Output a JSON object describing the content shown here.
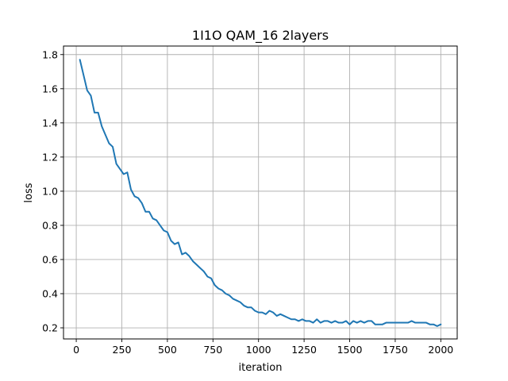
{
  "colors": {
    "line": "#1f77b4",
    "grid": "#b0b0b0",
    "axes": "#000000",
    "background": "#ffffff"
  },
  "chart_data": {
    "type": "line",
    "title": "1I1O QAM_16 2layers",
    "xlabel": "iteration",
    "ylabel": "loss",
    "grid": true,
    "xlim": [
      -70,
      2090
    ],
    "ylim": [
      0.135,
      1.85
    ],
    "xticks": [
      0,
      250,
      500,
      750,
      1000,
      1250,
      1500,
      1750,
      2000
    ],
    "xtick_labels": [
      "0",
      "250",
      "500",
      "750",
      "1000",
      "1250",
      "1500",
      "1750",
      "2000"
    ],
    "yticks": [
      0.2,
      0.4,
      0.6,
      0.8,
      1.0,
      1.2,
      1.4,
      1.6,
      1.8
    ],
    "ytick_labels": [
      "0.2",
      "0.4",
      "0.6",
      "0.8",
      "1.0",
      "1.2",
      "1.4",
      "1.6",
      "1.8"
    ],
    "series": [
      {
        "name": "loss",
        "x": [
          20,
          40,
          60,
          80,
          100,
          120,
          140,
          160,
          180,
          200,
          220,
          240,
          260,
          280,
          300,
          320,
          340,
          360,
          380,
          400,
          420,
          440,
          460,
          480,
          500,
          520,
          540,
          560,
          580,
          600,
          620,
          640,
          660,
          680,
          700,
          720,
          740,
          760,
          780,
          800,
          820,
          840,
          860,
          880,
          900,
          920,
          940,
          960,
          980,
          1000,
          1020,
          1040,
          1060,
          1080,
          1100,
          1120,
          1140,
          1160,
          1180,
          1200,
          1220,
          1240,
          1260,
          1280,
          1300,
          1320,
          1340,
          1360,
          1380,
          1400,
          1420,
          1440,
          1460,
          1480,
          1500,
          1520,
          1540,
          1560,
          1580,
          1600,
          1620,
          1640,
          1660,
          1680,
          1700,
          1720,
          1740,
          1760,
          1780,
          1800,
          1820,
          1840,
          1860,
          1880,
          1900,
          1920,
          1940,
          1960,
          1980,
          2000
        ],
        "y": [
          1.77,
          1.68,
          1.59,
          1.56,
          1.46,
          1.46,
          1.38,
          1.33,
          1.28,
          1.26,
          1.16,
          1.13,
          1.1,
          1.11,
          1.01,
          0.97,
          0.96,
          0.93,
          0.88,
          0.88,
          0.84,
          0.83,
          0.8,
          0.77,
          0.76,
          0.71,
          0.69,
          0.7,
          0.63,
          0.64,
          0.62,
          0.59,
          0.57,
          0.55,
          0.53,
          0.5,
          0.49,
          0.45,
          0.43,
          0.42,
          0.4,
          0.39,
          0.37,
          0.36,
          0.35,
          0.33,
          0.32,
          0.32,
          0.3,
          0.29,
          0.29,
          0.28,
          0.3,
          0.29,
          0.27,
          0.28,
          0.27,
          0.26,
          0.25,
          0.25,
          0.24,
          0.25,
          0.24,
          0.24,
          0.23,
          0.25,
          0.23,
          0.24,
          0.24,
          0.23,
          0.24,
          0.23,
          0.23,
          0.24,
          0.22,
          0.24,
          0.23,
          0.24,
          0.23,
          0.24,
          0.24,
          0.22,
          0.22,
          0.22,
          0.23,
          0.23,
          0.23,
          0.23,
          0.23,
          0.23,
          0.23,
          0.24,
          0.23,
          0.23,
          0.23,
          0.23,
          0.22,
          0.22,
          0.21,
          0.22
        ]
      }
    ]
  }
}
